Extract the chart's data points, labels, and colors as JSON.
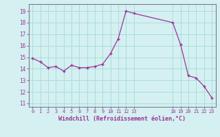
{
  "x": [
    0,
    1,
    2,
    3,
    4,
    5,
    6,
    7,
    8,
    9,
    10,
    11,
    12,
    13,
    18,
    19,
    20,
    21,
    22,
    23
  ],
  "y": [
    14.9,
    14.6,
    14.1,
    14.2,
    13.8,
    14.3,
    14.1,
    14.1,
    14.2,
    14.4,
    15.3,
    16.6,
    19.0,
    18.8,
    18.0,
    16.1,
    13.4,
    13.2,
    12.5,
    11.5
  ],
  "xticks": [
    0,
    1,
    2,
    3,
    4,
    5,
    6,
    7,
    8,
    9,
    10,
    11,
    12,
    13,
    18,
    19,
    20,
    21,
    22,
    23
  ],
  "yticks": [
    11,
    12,
    13,
    14,
    15,
    16,
    17,
    18,
    19
  ],
  "ylim": [
    10.7,
    19.6
  ],
  "xlim": [
    -0.5,
    23.5
  ],
  "xlabel": "Windchill (Refroidissement éolien,°C)",
  "line_color": "#993399",
  "marker_color": "#993399",
  "bg_color": "#d4f0f0",
  "grid_color": "#aadddd",
  "tick_color": "#993399",
  "xlabel_color": "#993399",
  "spine_color": "#7a7a9a"
}
